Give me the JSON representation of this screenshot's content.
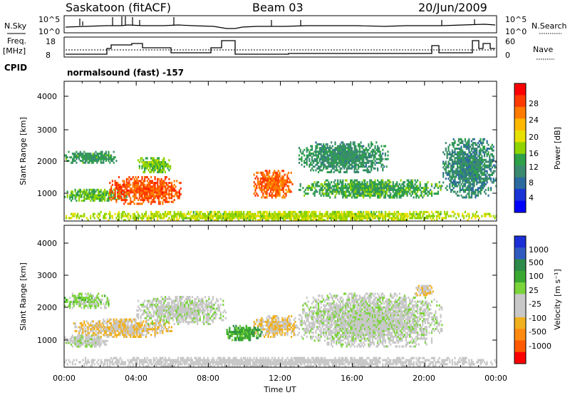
{
  "header": {
    "station": "Saskatoon (fitACF)",
    "beam": "Beam 03",
    "date": "20/Jun/2009"
  },
  "aux_panels": {
    "nsky_label": "N.Sky",
    "nsearch_label": "N.Search",
    "nsky_ticks": [
      "10^5",
      "10^0"
    ],
    "nsearch_ticks": [
      "10^5",
      "10^0"
    ],
    "freq_label_1": "Freq.",
    "freq_label_2": "[MHz]",
    "freq_ticks": [
      "18",
      "8"
    ],
    "nave_label": "Nave",
    "nave_ticks": [
      "60",
      "0"
    ],
    "cpid_label": "CPID",
    "cpid_text": "normalsound (fast) -157"
  },
  "power_colorbar": {
    "label": "Power [dB]",
    "ticks": [
      "28",
      "24",
      "20",
      "16",
      "12",
      "8",
      "4"
    ],
    "colors": [
      "#ff0000",
      "#ff3a00",
      "#ff7a00",
      "#ffb800",
      "#e8e000",
      "#8fd400",
      "#2ea04a",
      "#3a8a70",
      "#2c6aa0",
      "#1a34d8",
      "#0000ff"
    ]
  },
  "velocity_colorbar": {
    "label": "Velocity [m s⁻¹]",
    "ticks": [
      "1000",
      "500",
      "100",
      "25",
      "-25",
      "-100",
      "-500",
      "-1000"
    ],
    "colors": [
      "#1c2fd6",
      "#2f5bc0",
      "#2e8a4a",
      "#3aa830",
      "#7ad43a",
      "#c8c8c8",
      "#c8c8c8",
      "#f0b020",
      "#ff8a10",
      "#ff5a00",
      "#ff0000"
    ]
  },
  "axes": {
    "ylabel": "Slant Range [km]",
    "yticks": [
      "4000",
      "3000",
      "2000",
      "1000"
    ],
    "xlabel": "Time UT",
    "xticks": [
      "00:00",
      "04:00",
      "08:00",
      "12:00",
      "16:00",
      "20:00",
      "00:00"
    ]
  },
  "chart_data": [
    {
      "type": "heatmap",
      "title": "",
      "quantity": "Power",
      "units": "dB",
      "xlabel": "",
      "ylabel": "Slant Range [km]",
      "xlim": [
        "00:00",
        "24:00"
      ],
      "ylim": [
        180,
        4600
      ],
      "clim": [
        0,
        30
      ],
      "regions": [
        {
          "t": [
            0.0,
            3.5
          ],
          "r": [
            800,
            1200
          ],
          "value": 13
        },
        {
          "t": [
            0.0,
            3.0
          ],
          "r": [
            2000,
            2400
          ],
          "value": 11
        },
        {
          "t": [
            2.5,
            6.5
          ],
          "r": [
            700,
            1600
          ],
          "value": 26
        },
        {
          "t": [
            4.0,
            6.0
          ],
          "r": [
            1700,
            2200
          ],
          "value": 14
        },
        {
          "t": [
            10.5,
            12.7
          ],
          "r": [
            900,
            1800
          ],
          "value": 25
        },
        {
          "t": [
            13.0,
            21.0
          ],
          "r": [
            900,
            1500
          ],
          "value": 12
        },
        {
          "t": [
            13.0,
            18.0
          ],
          "r": [
            1700,
            2700
          ],
          "value": 10
        },
        {
          "t": [
            21.0,
            24.0
          ],
          "r": [
            900,
            2800
          ],
          "value": 9
        },
        {
          "t": [
            0.0,
            24.0
          ],
          "r": [
            180,
            500
          ],
          "value": 16
        }
      ]
    },
    {
      "type": "heatmap",
      "title": "",
      "quantity": "Velocity",
      "units": "m s^-1",
      "xlabel": "Time UT",
      "ylabel": "Slant Range [km]",
      "xlim": [
        "00:00",
        "24:00"
      ],
      "ylim": [
        180,
        4600
      ],
      "clim": [
        -1000,
        1000
      ],
      "regions": [
        {
          "t": [
            0.0,
            2.5
          ],
          "r": [
            2000,
            2500
          ],
          "value": 150
        },
        {
          "t": [
            0.0,
            2.5
          ],
          "r": [
            800,
            1200
          ],
          "value": 0
        },
        {
          "t": [
            0.5,
            6.0
          ],
          "r": [
            1100,
            1700
          ],
          "value": -300
        },
        {
          "t": [
            4.0,
            9.0
          ],
          "r": [
            1500,
            2400
          ],
          "value": 0
        },
        {
          "t": [
            10.5,
            13.0
          ],
          "r": [
            1100,
            1800
          ],
          "value": -300
        },
        {
          "t": [
            9.0,
            11.0
          ],
          "r": [
            1000,
            1500
          ],
          "value": 400
        },
        {
          "t": [
            13.0,
            21.0
          ],
          "r": [
            800,
            2500
          ],
          "value": 0
        },
        {
          "t": [
            19.5,
            20.5
          ],
          "r": [
            2400,
            2800
          ],
          "value": -300
        },
        {
          "t": [
            0.0,
            24.0
          ],
          "r": [
            180,
            500
          ],
          "value": -80
        }
      ]
    }
  ]
}
